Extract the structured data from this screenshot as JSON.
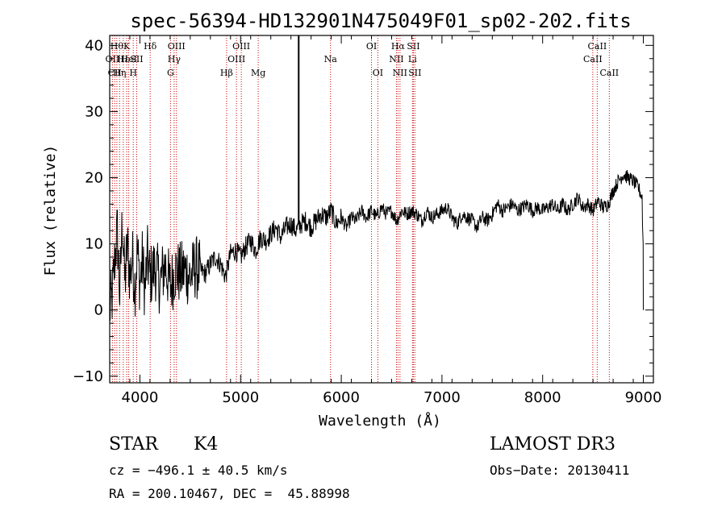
{
  "chart_data": {
    "type": "line",
    "title": "spec-56394-HD132901N475049F01_sp02-202.fits",
    "xlabel": "Wavelength (Å)",
    "ylabel": "Flux (relative)",
    "xlim": [
      3700,
      9100
    ],
    "ylim": [
      -11,
      41.5
    ],
    "x_ticks": [
      4000,
      5000,
      6000,
      7000,
      8000,
      9000
    ],
    "y_ticks": [
      -10,
      0,
      10,
      20,
      30,
      40
    ],
    "x_tick_labels": [
      "4000",
      "5000",
      "6000",
      "7000",
      "8000",
      "9000"
    ],
    "y_tick_labels": [
      "−10",
      "0",
      "10",
      "20",
      "30",
      "40"
    ],
    "spike_wavelength": 5577,
    "series": [
      {
        "name": "flux",
        "points": [
          [
            3700,
            0.0
          ],
          [
            3725,
            2.0
          ],
          [
            3750,
            7.5
          ],
          [
            3775,
            12.0
          ],
          [
            3800,
            2.0
          ],
          [
            3825,
            14.0
          ],
          [
            3850,
            4.0
          ],
          [
            3875,
            10.0
          ],
          [
            3900,
            5.0
          ],
          [
            3925,
            8.0
          ],
          [
            3950,
            3.5
          ],
          [
            3975,
            9.0
          ],
          [
            4000,
            4.0
          ],
          [
            4025,
            7.5
          ],
          [
            4050,
            3.0
          ],
          [
            4075,
            8.0
          ],
          [
            4100,
            5.0
          ],
          [
            4150,
            6.5
          ],
          [
            4200,
            4.0
          ],
          [
            4250,
            7.0
          ],
          [
            4300,
            3.5
          ],
          [
            4350,
            6.0
          ],
          [
            4400,
            5.5
          ],
          [
            4450,
            6.0
          ],
          [
            4500,
            5.0
          ],
          [
            4550,
            6.5
          ],
          [
            4600,
            6.0
          ],
          [
            4650,
            5.5
          ],
          [
            4700,
            7.0
          ],
          [
            4750,
            8.0
          ],
          [
            4800,
            7.0
          ],
          [
            4850,
            5.0
          ],
          [
            4900,
            8.5
          ],
          [
            4950,
            9.0
          ],
          [
            5000,
            8.0
          ],
          [
            5050,
            9.5
          ],
          [
            5100,
            10.5
          ],
          [
            5150,
            9.0
          ],
          [
            5200,
            11.0
          ],
          [
            5250,
            10.5
          ],
          [
            5300,
            11.5
          ],
          [
            5350,
            12.5
          ],
          [
            5400,
            11.0
          ],
          [
            5450,
            12.5
          ],
          [
            5500,
            13.0
          ],
          [
            5550,
            12.0
          ],
          [
            5600,
            13.0
          ],
          [
            5650,
            13.5
          ],
          [
            5700,
            12.5
          ],
          [
            5750,
            13.5
          ],
          [
            5800,
            14.5
          ],
          [
            5850,
            14.0
          ],
          [
            5900,
            15.0
          ],
          [
            5950,
            13.0
          ],
          [
            6000,
            14.0
          ],
          [
            6050,
            12.5
          ],
          [
            6100,
            14.0
          ],
          [
            6150,
            13.5
          ],
          [
            6200,
            15.0
          ],
          [
            6250,
            14.0
          ],
          [
            6300,
            15.0
          ],
          [
            6350,
            14.0
          ],
          [
            6400,
            15.5
          ],
          [
            6450,
            14.5
          ],
          [
            6500,
            15.0
          ],
          [
            6550,
            13.5
          ],
          [
            6600,
            15.0
          ],
          [
            6650,
            14.5
          ],
          [
            6700,
            15.0
          ],
          [
            6750,
            14.5
          ],
          [
            6800,
            13.5
          ],
          [
            6850,
            15.0
          ],
          [
            6900,
            14.0
          ],
          [
            6950,
            14.5
          ],
          [
            7000,
            15.0
          ],
          [
            7050,
            15.5
          ],
          [
            7100,
            14.0
          ],
          [
            7150,
            13.0
          ],
          [
            7200,
            14.5
          ],
          [
            7250,
            14.0
          ],
          [
            7300,
            13.5
          ],
          [
            7350,
            12.5
          ],
          [
            7400,
            14.0
          ],
          [
            7450,
            13.5
          ],
          [
            7500,
            14.5
          ],
          [
            7550,
            16.0
          ],
          [
            7600,
            15.0
          ],
          [
            7650,
            15.5
          ],
          [
            7700,
            16.0
          ],
          [
            7750,
            15.0
          ],
          [
            7800,
            15.5
          ],
          [
            7850,
            16.0
          ],
          [
            7900,
            15.0
          ],
          [
            7950,
            15.5
          ],
          [
            8000,
            15.0
          ],
          [
            8050,
            15.5
          ],
          [
            8100,
            16.0
          ],
          [
            8150,
            15.0
          ],
          [
            8200,
            16.0
          ],
          [
            8250,
            15.0
          ],
          [
            8300,
            16.0
          ],
          [
            8350,
            17.0
          ],
          [
            8400,
            15.5
          ],
          [
            8450,
            16.0
          ],
          [
            8500,
            15.0
          ],
          [
            8550,
            16.5
          ],
          [
            8600,
            15.5
          ],
          [
            8650,
            16.0
          ],
          [
            8700,
            18.0
          ],
          [
            8750,
            19.5
          ],
          [
            8800,
            20.5
          ],
          [
            8850,
            20.0
          ],
          [
            8900,
            19.5
          ],
          [
            8950,
            18.5
          ],
          [
            8990,
            17.0
          ],
          [
            9000,
            0.0
          ]
        ]
      }
    ],
    "line_markers": [
      {
        "wl": 3727,
        "row": 2,
        "label": "OII"
      },
      {
        "wl": 3750,
        "row": 3,
        "label": "CII"
      },
      {
        "wl": 3771,
        "row": 1,
        "label": "Hθ"
      },
      {
        "wl": 3798,
        "row": 3,
        "label": "Hη"
      },
      {
        "wl": 3835,
        "row": 2,
        "label": "Hε"
      },
      {
        "wl": 3869,
        "row": 1,
        "label": "K"
      },
      {
        "wl": 3889,
        "row": 2,
        "label": "HeI"
      },
      {
        "wl": 3934,
        "row": 3,
        "label": "H"
      },
      {
        "wl": 3968,
        "row": 2,
        "label": "SII"
      },
      {
        "wl": 4102,
        "row": 1,
        "label": "Hδ"
      },
      {
        "wl": 4304,
        "row": 3,
        "label": "G"
      },
      {
        "wl": 4340,
        "row": 2,
        "label": "Hγ"
      },
      {
        "wl": 4363,
        "row": 1,
        "label": "OIII"
      },
      {
        "wl": 4861,
        "row": 3,
        "label": "Hβ"
      },
      {
        "wl": 4959,
        "row": 2,
        "label": "OIII"
      },
      {
        "wl": 5007,
        "row": 1,
        "label": "OIII"
      },
      {
        "wl": 5175,
        "row": 3,
        "label": "Mg"
      },
      {
        "wl": 5893,
        "row": 2,
        "label": "Na"
      },
      {
        "wl": 6300,
        "row": 1,
        "label": "OI"
      },
      {
        "wl": 6363,
        "row": 3,
        "label": "OI"
      },
      {
        "wl": 6548,
        "row": 2,
        "label": "NII"
      },
      {
        "wl": 6563,
        "row": 1,
        "label": "Hα"
      },
      {
        "wl": 6583,
        "row": 3,
        "label": "NII"
      },
      {
        "wl": 6707,
        "row": 2,
        "label": "Li"
      },
      {
        "wl": 6716,
        "row": 1,
        "label": "SII"
      },
      {
        "wl": 6731,
        "row": 3,
        "label": "SII"
      },
      {
        "wl": 8498,
        "row": 2,
        "label": "CaII"
      },
      {
        "wl": 8542,
        "row": 1,
        "label": "CaII"
      },
      {
        "wl": 8662,
        "row": 3,
        "label": "CaII"
      }
    ]
  },
  "info": {
    "object_class": "STAR",
    "subclass": "K4",
    "survey": "LAMOST DR3",
    "cz": "cz = −496.1 ± 40.5 km/s",
    "obs_date": "Obs−Date: 20130411",
    "coords": "RA = 200.10467, DEC =  45.88998"
  }
}
